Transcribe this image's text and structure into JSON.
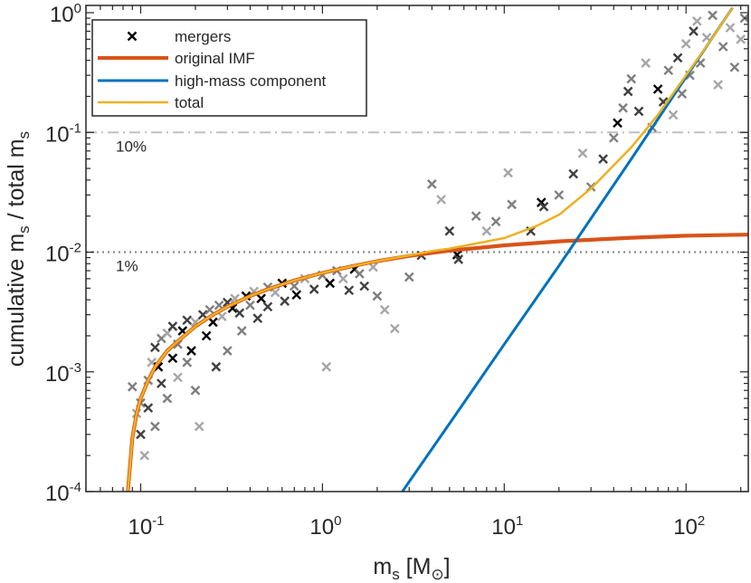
{
  "chart_data": {
    "type": "scatter",
    "xscale": "log",
    "yscale": "log",
    "xlim": [
      0.05,
      220
    ],
    "ylim": [
      0.0001,
      1.15
    ],
    "xlabel": {
      "main": "m",
      "sub": "s",
      "bracket_open": "[M",
      "sub2": "⊙",
      "bracket_close": "]"
    },
    "ylabel": {
      "part1": "cumulative m",
      "sub1": "s",
      "part2": " / total m",
      "sub2": "s"
    },
    "xticks": [
      {
        "value": 0.1,
        "base": "10",
        "exp": "-1"
      },
      {
        "value": 1,
        "base": "10",
        "exp": "0"
      },
      {
        "value": 10,
        "base": "10",
        "exp": "1"
      },
      {
        "value": 100,
        "base": "10",
        "exp": "2"
      }
    ],
    "yticks": [
      {
        "value": 0.0001,
        "base": "10",
        "exp": "-4"
      },
      {
        "value": 0.001,
        "base": "10",
        "exp": "-3"
      },
      {
        "value": 0.01,
        "base": "10",
        "exp": "-2"
      },
      {
        "value": 0.1,
        "base": "10",
        "exp": "-1"
      },
      {
        "value": 1,
        "base": "10",
        "exp": "0"
      }
    ],
    "reference_lines": [
      {
        "y": 0.1,
        "label": "10%",
        "style": "dashdot",
        "color": "#c0c0c0"
      },
      {
        "y": 0.01,
        "label": "1%",
        "style": "dotted",
        "color": "#8c8c8c"
      }
    ],
    "legend": {
      "position": "top-left",
      "entries": [
        {
          "label": "mergers",
          "kind": "marker",
          "color": "#000000"
        },
        {
          "label": "original IMF",
          "kind": "line",
          "color": "#D95319"
        },
        {
          "label": "high-mass component",
          "kind": "line",
          "color": "#0072BD"
        },
        {
          "label": "total",
          "kind": "line",
          "color": "#EDB120"
        }
      ]
    },
    "series": [
      {
        "name": "original IMF",
        "kind": "line",
        "color": "#D95319",
        "x": [
          0.085,
          0.09,
          0.095,
          0.1,
          0.11,
          0.12,
          0.14,
          0.16,
          0.2,
          0.25,
          0.3,
          0.4,
          0.5,
          0.7,
          1.0,
          1.5,
          2,
          3,
          5,
          8,
          10,
          20,
          50,
          100,
          220
        ],
        "y": [
          0.0001,
          0.00028,
          0.00045,
          0.0006,
          0.00085,
          0.0011,
          0.0015,
          0.0018,
          0.0024,
          0.003,
          0.0035,
          0.0043,
          0.0049,
          0.0058,
          0.0067,
          0.0077,
          0.0084,
          0.0093,
          0.0103,
          0.011,
          0.0114,
          0.0123,
          0.0132,
          0.0137,
          0.014
        ]
      },
      {
        "name": "high-mass component",
        "kind": "line",
        "color": "#0072BD",
        "x": [
          2.75,
          5,
          10,
          20,
          50,
          100,
          180
        ],
        "y": [
          0.0001,
          0.00037,
          0.0017,
          0.0077,
          0.06,
          0.29,
          1.1
        ]
      },
      {
        "name": "total",
        "kind": "line",
        "color": "#EDB120",
        "x": [
          0.085,
          0.09,
          0.095,
          0.1,
          0.11,
          0.12,
          0.14,
          0.16,
          0.2,
          0.25,
          0.3,
          0.4,
          0.5,
          0.7,
          1.0,
          1.5,
          2,
          3,
          4,
          5,
          7,
          10,
          15,
          20,
          30,
          50,
          70,
          100,
          140,
          180
        ],
        "y": [
          0.0001,
          0.00028,
          0.00045,
          0.0006,
          0.00085,
          0.0011,
          0.0015,
          0.0018,
          0.0024,
          0.003,
          0.0035,
          0.0043,
          0.0049,
          0.0058,
          0.0067,
          0.0077,
          0.0084,
          0.0094,
          0.0102,
          0.0107,
          0.0118,
          0.0131,
          0.0165,
          0.0205,
          0.034,
          0.075,
          0.14,
          0.3,
          0.62,
          1.1
        ]
      },
      {
        "name": "mergers",
        "kind": "scatter",
        "marker": "x",
        "shades": [
          "#000000",
          "#404040",
          "#7f7f7f",
          "#a6a6a6"
        ],
        "points": [
          [
            0.09,
            0.00075,
            2
          ],
          [
            0.095,
            0.00045,
            3
          ],
          [
            0.1,
            0.0003,
            1
          ],
          [
            0.1,
            0.00055,
            2
          ],
          [
            0.105,
            0.0002,
            3
          ],
          [
            0.11,
            0.00085,
            2
          ],
          [
            0.11,
            0.0005,
            1
          ],
          [
            0.115,
            0.0012,
            3
          ],
          [
            0.12,
            0.0016,
            1
          ],
          [
            0.12,
            0.00035,
            2
          ],
          [
            0.125,
            0.0011,
            0
          ],
          [
            0.13,
            0.0019,
            2
          ],
          [
            0.13,
            0.0008,
            1
          ],
          [
            0.14,
            0.0021,
            3
          ],
          [
            0.14,
            0.0006,
            2
          ],
          [
            0.15,
            0.0013,
            0
          ],
          [
            0.15,
            0.0024,
            1
          ],
          [
            0.16,
            0.0017,
            2
          ],
          [
            0.16,
            0.0009,
            3
          ],
          [
            0.17,
            0.0022,
            0
          ],
          [
            0.18,
            0.0027,
            1
          ],
          [
            0.18,
            0.0012,
            2
          ],
          [
            0.19,
            0.0015,
            0
          ],
          [
            0.2,
            0.0026,
            3
          ],
          [
            0.2,
            0.0007,
            2
          ],
          [
            0.21,
            0.00035,
            3
          ],
          [
            0.22,
            0.003,
            1
          ],
          [
            0.23,
            0.002,
            0
          ],
          [
            0.24,
            0.0033,
            2
          ],
          [
            0.25,
            0.0026,
            0
          ],
          [
            0.26,
            0.0011,
            1
          ],
          [
            0.27,
            0.0036,
            2
          ],
          [
            0.28,
            0.0029,
            3
          ],
          [
            0.3,
            0.0038,
            1
          ],
          [
            0.3,
            0.0015,
            2
          ],
          [
            0.32,
            0.0034,
            0
          ],
          [
            0.33,
            0.0041,
            3
          ],
          [
            0.35,
            0.0031,
            1
          ],
          [
            0.36,
            0.0022,
            2
          ],
          [
            0.38,
            0.0043,
            0
          ],
          [
            0.4,
            0.0036,
            2
          ],
          [
            0.42,
            0.0047,
            3
          ],
          [
            0.44,
            0.0028,
            1
          ],
          [
            0.46,
            0.0041,
            0
          ],
          [
            0.5,
            0.0051,
            2
          ],
          [
            0.5,
            0.0035,
            1
          ],
          [
            0.55,
            0.0046,
            3
          ],
          [
            0.6,
            0.0055,
            0
          ],
          [
            0.62,
            0.0039,
            1
          ],
          [
            0.7,
            0.0052,
            2
          ],
          [
            0.72,
            0.0044,
            0
          ],
          [
            0.8,
            0.006,
            3
          ],
          [
            0.9,
            0.0049,
            1
          ],
          [
            1.0,
            0.0064,
            2
          ],
          [
            1.05,
            0.0011,
            3
          ],
          [
            1.1,
            0.0055,
            0
          ],
          [
            1.2,
            0.007,
            2
          ],
          [
            1.3,
            0.006,
            3
          ],
          [
            1.4,
            0.0048,
            1
          ],
          [
            1.5,
            0.0072,
            0
          ],
          [
            1.6,
            0.0066,
            2
          ],
          [
            1.7,
            0.0052,
            1
          ],
          [
            1.9,
            0.0075,
            3
          ],
          [
            2.0,
            0.0043,
            2
          ],
          [
            2.2,
            0.0033,
            3
          ],
          [
            2.5,
            0.0023,
            3
          ],
          [
            3.0,
            0.0062,
            2
          ],
          [
            3.5,
            0.0094,
            1
          ],
          [
            4.0,
            0.037,
            2
          ],
          [
            4.5,
            0.0275,
            3
          ],
          [
            5.0,
            0.015,
            1
          ],
          [
            5.5,
            0.0095,
            0
          ],
          [
            5.6,
            0.0087,
            1
          ],
          [
            7.0,
            0.02,
            2
          ],
          [
            8.0,
            0.015,
            3
          ],
          [
            9.0,
            0.018,
            2
          ],
          [
            10.5,
            0.046,
            3
          ],
          [
            11,
            0.025,
            2
          ],
          [
            14,
            0.015,
            1
          ],
          [
            16,
            0.026,
            0
          ],
          [
            16.5,
            0.024,
            1
          ],
          [
            20,
            0.03,
            2
          ],
          [
            24,
            0.045,
            1
          ],
          [
            27,
            0.067,
            3
          ],
          [
            30,
            0.035,
            2
          ],
          [
            35,
            0.06,
            1
          ],
          [
            40,
            0.09,
            2
          ],
          [
            42,
            0.12,
            0
          ],
          [
            45,
            0.16,
            2
          ],
          [
            48,
            0.22,
            1
          ],
          [
            50,
            0.28,
            2
          ],
          [
            55,
            0.15,
            1
          ],
          [
            60,
            0.38,
            3
          ],
          [
            65,
            0.11,
            2
          ],
          [
            70,
            0.23,
            0
          ],
          [
            75,
            0.18,
            1
          ],
          [
            80,
            0.33,
            2
          ],
          [
            85,
            0.14,
            3
          ],
          [
            90,
            0.42,
            1
          ],
          [
            95,
            0.21,
            2
          ],
          [
            100,
            0.55,
            3
          ],
          [
            105,
            0.3,
            2
          ],
          [
            110,
            0.7,
            1
          ],
          [
            115,
            0.85,
            3
          ],
          [
            120,
            0.38,
            2
          ],
          [
            130,
            0.62,
            3
          ],
          [
            140,
            0.95,
            2
          ],
          [
            150,
            0.25,
            3
          ],
          [
            160,
            0.52,
            2
          ],
          [
            175,
            0.75,
            3
          ],
          [
            185,
            0.35,
            2
          ],
          [
            200,
            0.6,
            3
          ],
          [
            210,
            0.9,
            2
          ]
        ]
      }
    ]
  }
}
